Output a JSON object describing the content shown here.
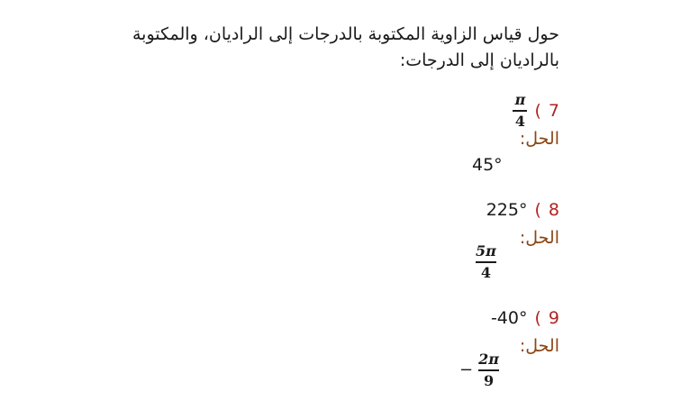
{
  "instruction": "حول قياس الزاوية المكتوبة بالدرجات إلى الراديان، والمكتوبة بالراديان إلى الدرجات:",
  "solution_label": "الحل:",
  "problems": [
    {
      "number": "7",
      "paren": ")",
      "question": {
        "type": "fraction",
        "numerator": "π",
        "denominator": "4"
      },
      "answer": {
        "type": "text",
        "text": "45°"
      }
    },
    {
      "number": "8",
      "paren": ")",
      "question": {
        "type": "text",
        "text": "225°"
      },
      "answer": {
        "type": "fraction",
        "sign": "",
        "numerator": "5π",
        "denominator": "4"
      }
    },
    {
      "number": "9",
      "paren": ")",
      "question": {
        "type": "text",
        "text": "-40°"
      },
      "answer": {
        "type": "fraction",
        "sign": "−",
        "numerator": "2π",
        "denominator": "9"
      }
    }
  ]
}
